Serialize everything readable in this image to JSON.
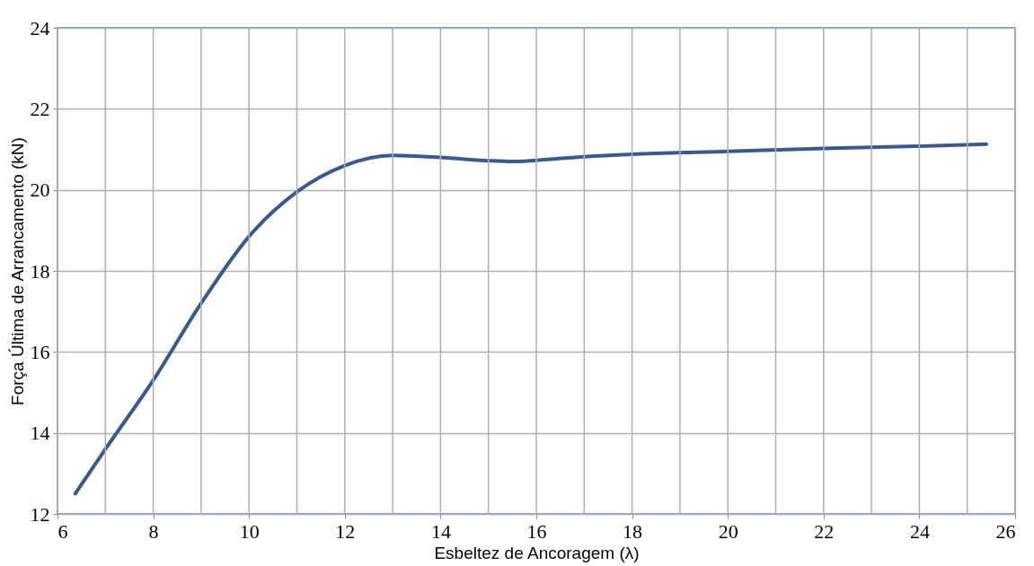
{
  "chart_data": {
    "type": "line",
    "xlabel": "Esbeltez de Ancoragem (λ)",
    "ylabel": "Força Última de Arrancamento (kN)",
    "x": [
      6.37,
      7,
      8,
      9,
      10,
      11,
      12,
      13,
      14,
      15,
      15.5,
      16,
      17,
      18,
      20,
      22,
      24,
      25.4
    ],
    "series": [
      {
        "color": "#3a5a8c",
        "values": [
          12.5,
          13.6,
          15.3,
          17.2,
          18.85,
          19.95,
          20.6,
          20.85,
          20.8,
          20.72,
          20.7,
          20.73,
          20.82,
          20.88,
          20.95,
          21.02,
          21.08,
          21.13
        ]
      }
    ],
    "xlim": [
      6,
      26
    ],
    "xticks": [
      6,
      8,
      10,
      12,
      14,
      16,
      18,
      20,
      22,
      24,
      26
    ],
    "ylim": [
      12,
      24
    ],
    "yticks": [
      12,
      14,
      16,
      18,
      20,
      22,
      24
    ],
    "grid": true,
    "marker": "none",
    "line_style": "solid",
    "legend": false
  }
}
